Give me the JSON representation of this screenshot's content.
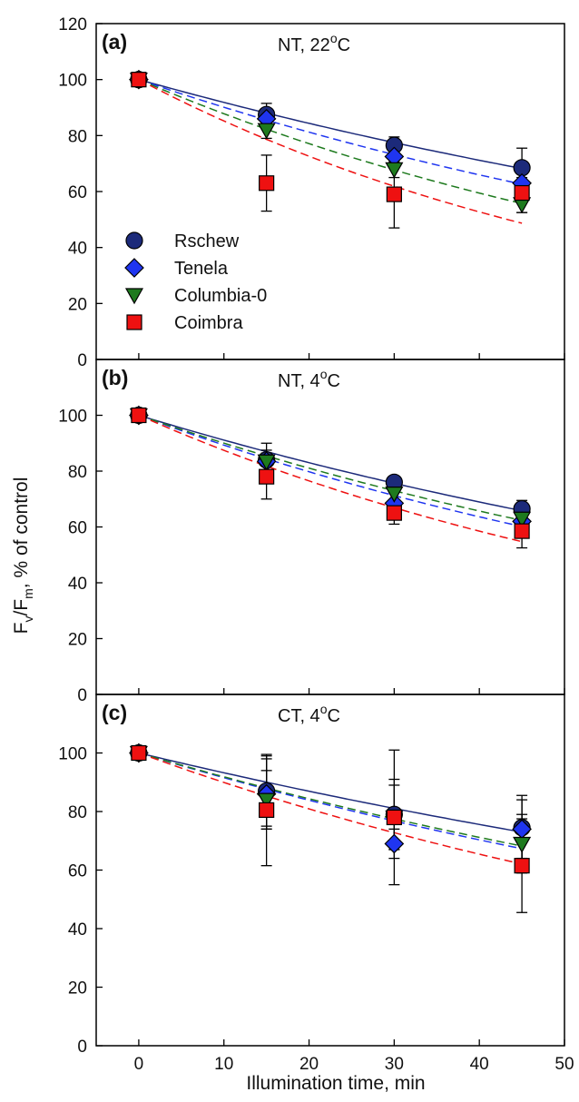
{
  "figure": {
    "xlabel": "Illumination time, min",
    "ylabel_main": "F",
    "ylabel_sub1": "v",
    "ylabel_mid": "/F",
    "ylabel_sub2": "m",
    "ylabel_tail": ", % of control"
  },
  "colors": {
    "Rschew": "#1c2a7a",
    "Tenela": "#1f35f0",
    "Columbia-0": "#1e7a1e",
    "Coimbra": "#ee1111"
  },
  "chart_data": [
    {
      "type": "scatter",
      "panel": "(a)",
      "condition": "NT, 22oC",
      "condition_text": "NT, 22",
      "condition_sup": "o",
      "condition_tail": "C",
      "x": [
        0,
        15,
        30,
        45
      ],
      "xlim": [
        -5,
        50
      ],
      "ylim": [
        0,
        120
      ],
      "xticks": [
        0,
        10,
        20,
        30,
        40,
        50
      ],
      "yticks": [
        0,
        20,
        40,
        60,
        80,
        100,
        120
      ],
      "ytick_labels": [
        "0",
        "20",
        "40",
        "60",
        "80",
        "100",
        "120"
      ],
      "show_x_tick_labels": false,
      "legend": "left",
      "series": [
        {
          "name": "Rschew",
          "marker": "circle",
          "line": "solid",
          "values": [
            100,
            87.5,
            76.5,
            68.5
          ],
          "err": [
            0,
            4,
            3,
            7
          ],
          "fit_k": 0.0085
        },
        {
          "name": "Tenela",
          "marker": "diamond",
          "line": "dashed",
          "values": [
            100,
            86,
            72.5,
            63
          ],
          "err": [
            0,
            3,
            2,
            2
          ],
          "fit_k": 0.0104
        },
        {
          "name": "Columbia-0",
          "marker": "triangle-down",
          "line": "dashed",
          "values": [
            100,
            82,
            68,
            55.5
          ],
          "err": [
            0,
            3,
            3,
            3
          ],
          "fit_k": 0.013
        },
        {
          "name": "Coimbra",
          "marker": "square",
          "line": "dashed",
          "values": [
            100,
            63,
            59,
            59.5
          ],
          "err": [
            0,
            10,
            12,
            7
          ],
          "fit_k": 0.016
        }
      ]
    },
    {
      "type": "scatter",
      "panel": "(b)",
      "condition": "NT, 4oC",
      "condition_text": "NT, 4",
      "condition_sup": "o",
      "condition_tail": "C",
      "x": [
        0,
        15,
        30,
        45
      ],
      "xlim": [
        -5,
        50
      ],
      "ylim": [
        0,
        120
      ],
      "xticks": [
        0,
        10,
        20,
        30,
        40,
        50
      ],
      "yticks": [
        0,
        20,
        40,
        60,
        80,
        100
      ],
      "ytick_labels": [
        "0",
        "20",
        "40",
        "60",
        "80",
        "100"
      ],
      "show_x_tick_labels": false,
      "legend": "none",
      "series": [
        {
          "name": "Rschew",
          "marker": "circle",
          "line": "solid",
          "values": [
            100,
            84,
            76,
            66.5
          ],
          "err": [
            0,
            6,
            2,
            3
          ],
          "fit_k": 0.0093
        },
        {
          "name": "Tenela",
          "marker": "diamond",
          "line": "dashed",
          "values": [
            100,
            83.5,
            68.5,
            62
          ],
          "err": [
            0,
            4,
            4,
            3
          ],
          "fit_k": 0.0113
        },
        {
          "name": "Columbia-0",
          "marker": "triangle-down",
          "line": "dashed",
          "values": [
            100,
            83.5,
            72,
            63
          ],
          "err": [
            0,
            3,
            3,
            3
          ],
          "fit_k": 0.0105
        },
        {
          "name": "Coimbra",
          "marker": "square",
          "line": "dashed",
          "values": [
            100,
            78,
            65,
            58.5
          ],
          "err": [
            0,
            8,
            4,
            6
          ],
          "fit_k": 0.0134
        }
      ]
    },
    {
      "type": "scatter",
      "panel": "(c)",
      "condition": "CT, 4oC",
      "condition_text": "CT, 4",
      "condition_sup": "o",
      "condition_tail": "C",
      "x": [
        0,
        15,
        30,
        45
      ],
      "xlim": [
        -5,
        50
      ],
      "ylim": [
        0,
        120
      ],
      "xticks": [
        0,
        10,
        20,
        30,
        40,
        50
      ],
      "xtick_labels": [
        "0",
        "10",
        "20",
        "30",
        "40",
        "50"
      ],
      "yticks": [
        0,
        20,
        40,
        60,
        80,
        100
      ],
      "ytick_labels": [
        "0",
        "20",
        "40",
        "60",
        "80",
        "100"
      ],
      "show_x_tick_labels": true,
      "legend": "none",
      "series": [
        {
          "name": "Rschew",
          "marker": "circle",
          "line": "solid",
          "values": [
            100,
            87,
            79,
            74.5
          ],
          "err": [
            0,
            12,
            12,
            11
          ],
          "fit_k": 0.007
        },
        {
          "name": "Tenela",
          "marker": "diamond",
          "line": "dashed",
          "values": [
            100,
            86,
            69,
            74
          ],
          "err": [
            0,
            12,
            5,
            10
          ],
          "fit_k": 0.0088
        },
        {
          "name": "Columbia-0",
          "marker": "triangle-down",
          "line": "dashed",
          "values": [
            100,
            84,
            78,
            69
          ],
          "err": [
            0,
            10,
            11,
            10
          ],
          "fit_k": 0.0085
        },
        {
          "name": "Coimbra",
          "marker": "square",
          "line": "dashed",
          "values": [
            100,
            80.5,
            78,
            61.5
          ],
          "err": [
            0,
            19,
            23,
            16
          ],
          "fit_k": 0.0106
        }
      ]
    }
  ]
}
